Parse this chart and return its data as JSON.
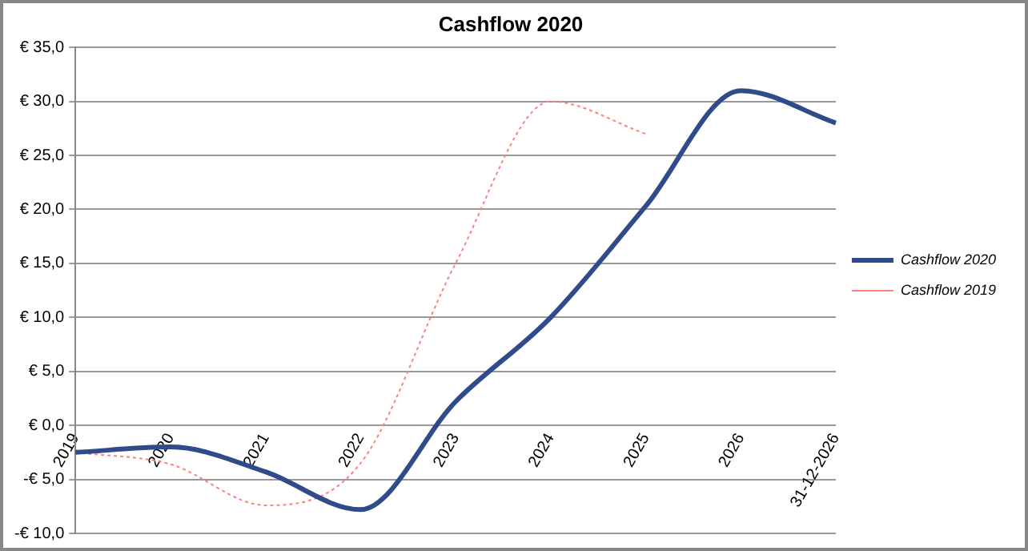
{
  "chart_data": {
    "type": "line",
    "title": "Cashflow 2020",
    "categories": [
      "2019",
      "2020",
      "2021",
      "2022",
      "2023",
      "2024",
      "2025",
      "2026",
      "31-12-2026"
    ],
    "series": [
      {
        "name": "Cashflow 2020",
        "color": "#2f4b8a",
        "values": [
          -2.5,
          -2.0,
          -4.3,
          -7.8,
          2.2,
          10.0,
          20.3,
          31.0,
          28.0
        ],
        "line_style": "solid"
      },
      {
        "name": "Cashflow 2019",
        "color": "#ff8080",
        "values": [
          -2.5,
          -3.6,
          -7.4,
          -3.5,
          15.0,
          30.0,
          27.0,
          null,
          null
        ],
        "line_style": "dotted"
      }
    ],
    "ylim": [
      -10,
      35
    ],
    "yticks": [
      {
        "value": -10,
        "label": "-€ 10,0"
      },
      {
        "value": -5,
        "label": "-€ 5,0"
      },
      {
        "value": 0,
        "label": "€ 0,0"
      },
      {
        "value": 5,
        "label": "€ 5,0"
      },
      {
        "value": 10,
        "label": "€ 10,0"
      },
      {
        "value": 15,
        "label": "€ 15,0"
      },
      {
        "value": 20,
        "label": "€ 20,0"
      },
      {
        "value": 25,
        "label": "€ 25,0"
      },
      {
        "value": 30,
        "label": "€ 30,0"
      },
      {
        "value": 35,
        "label": "€ 35,0"
      }
    ],
    "grid": "y",
    "legend": "right",
    "marker": "none"
  }
}
